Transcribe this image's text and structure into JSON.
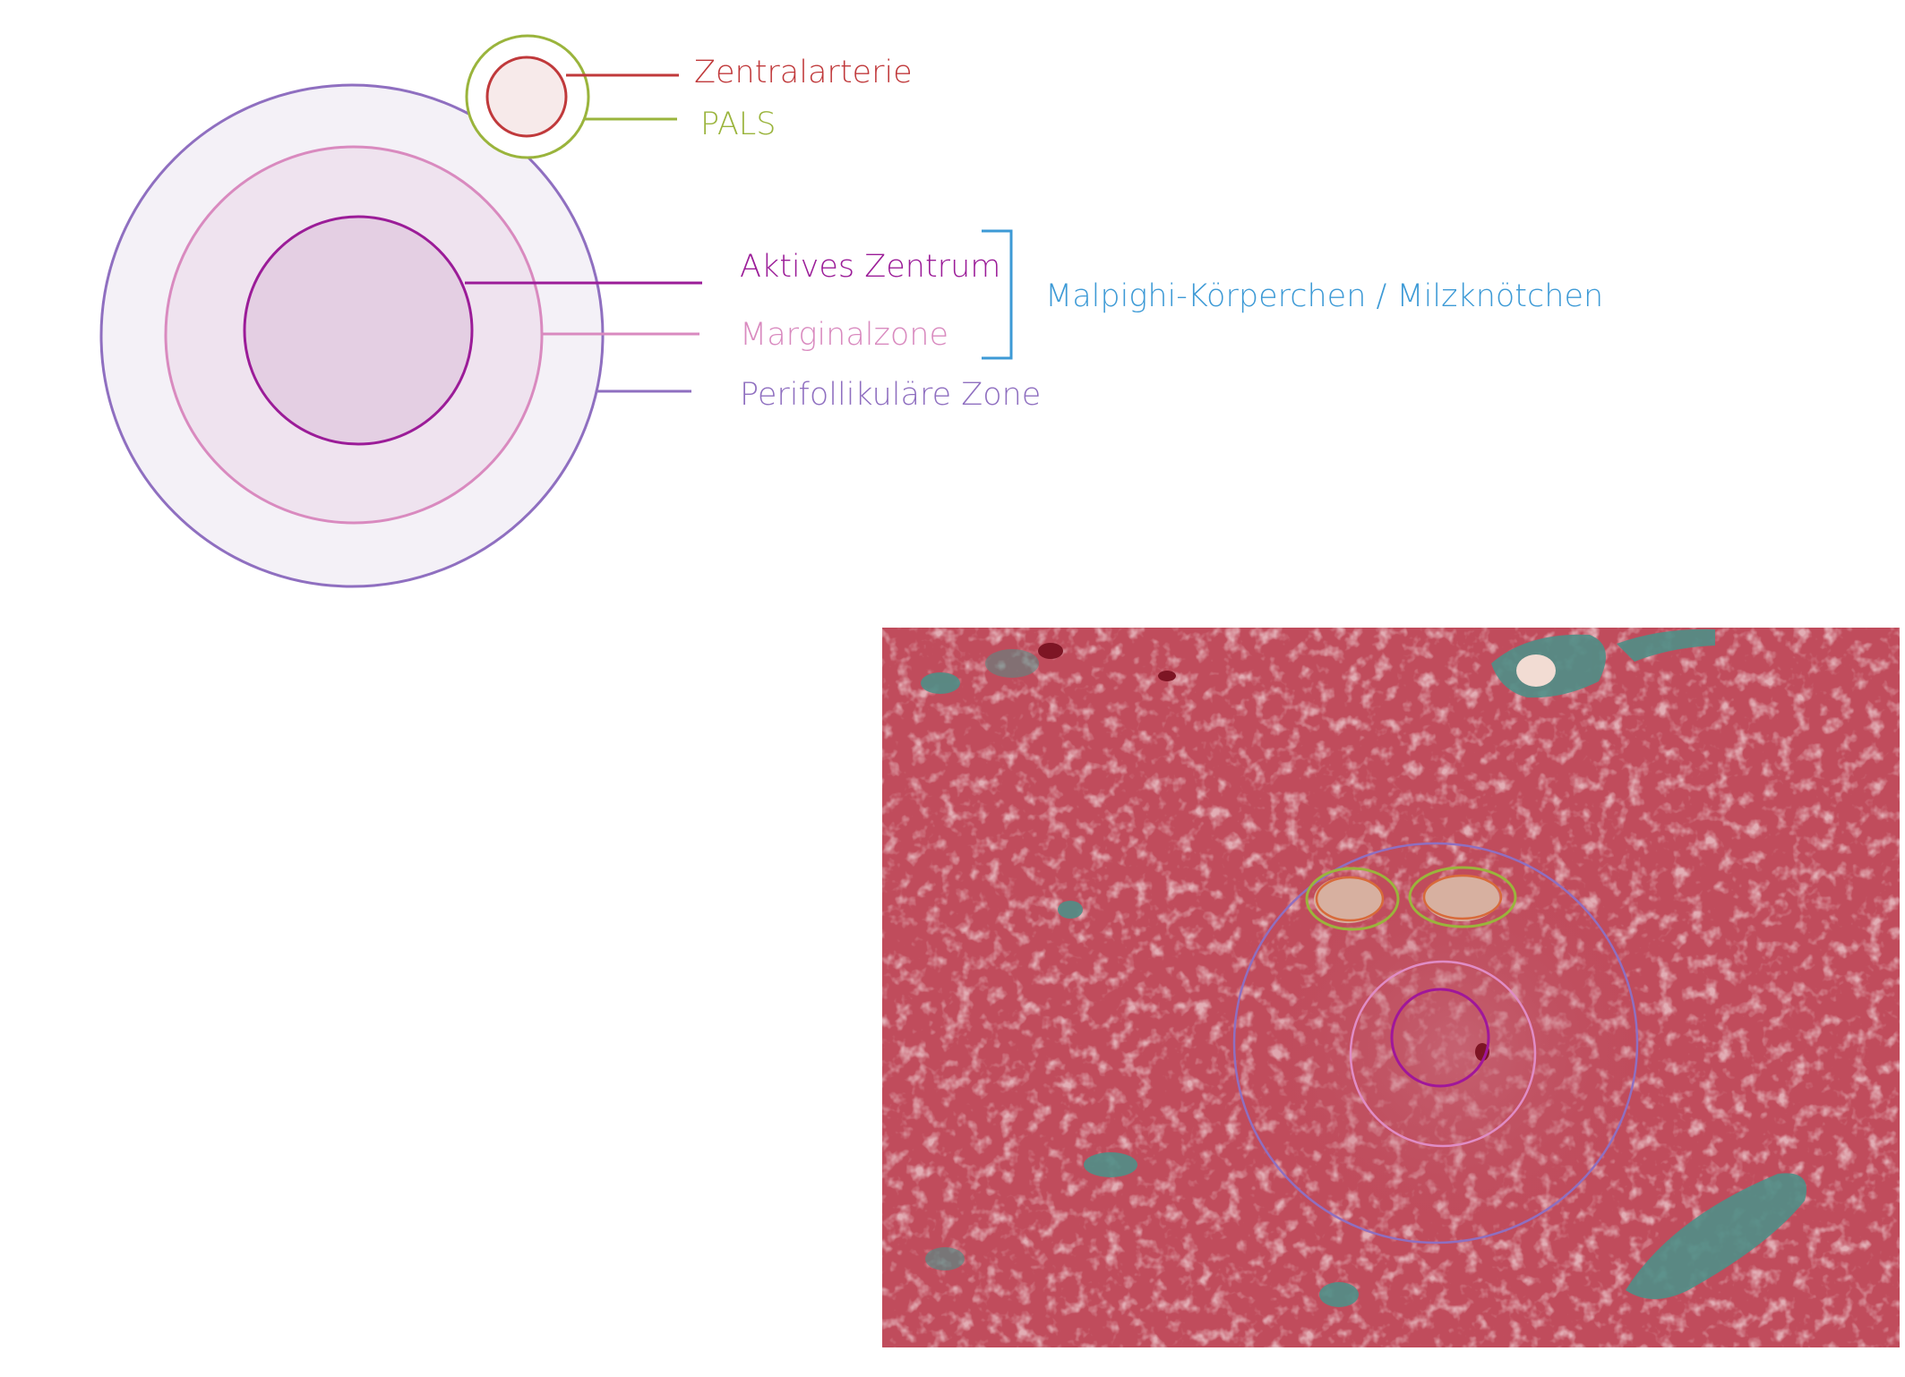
{
  "labels": {
    "zentralarterie": "Zentralarterie",
    "pals": "PALS",
    "aktives_zentrum": "Aktives Zentrum",
    "marginalzone": "Marginalzone",
    "perifollikulaere_zone": "Perifollikuläre Zone",
    "malpighi": "Malpighi-Körperchen / Milzknötchen"
  },
  "colors": {
    "zentralarterie": "#c0393b",
    "pals": "#9ab43c",
    "aktives_zentrum": "#9b1c98",
    "marginalzone": "#d98abf",
    "perifollikulaere_zone": "#8f6fc0",
    "malpighi": "#3d9ad6"
  },
  "image": {
    "type": "histology-micrograph-spleen"
  }
}
